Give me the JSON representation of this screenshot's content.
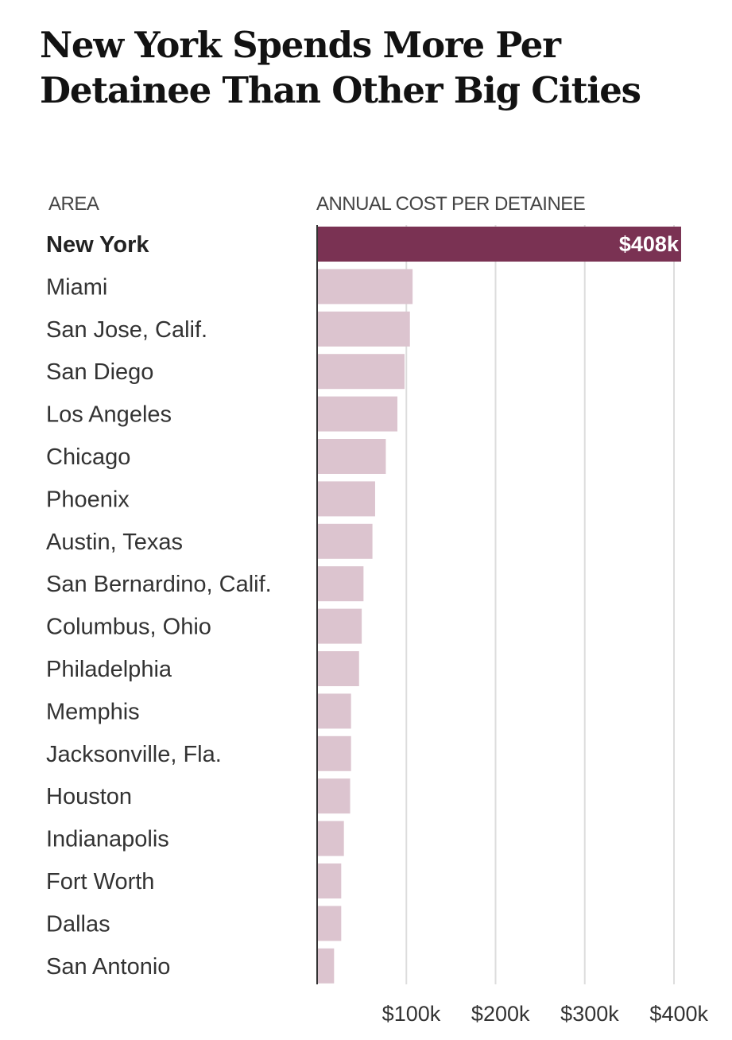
{
  "title": "New York Spends More Per Detainee Than Other Big Cities",
  "columns": {
    "area": "AREA",
    "cost": "ANNUAL COST PER DETAINEE"
  },
  "colors": {
    "highlight_bar": "#7a3253",
    "bar": "#dcc4cf",
    "gridline": "#dddddd",
    "axis": "#333333"
  },
  "chart_data": {
    "type": "bar",
    "orientation": "horizontal",
    "categories": [
      "New York",
      "Miami",
      "San Jose, Calif.",
      "San Diego",
      "Los Angeles",
      "Chicago",
      "Phoenix",
      "Austin, Texas",
      "San Bernardino, Calif.",
      "Columbus, Ohio",
      "Philadelphia",
      "Memphis",
      "Jacksonville, Fla.",
      "Houston",
      "Indianapolis",
      "Fort Worth",
      "Dallas",
      "San Antonio"
    ],
    "values": [
      408,
      107,
      104,
      98,
      90,
      77,
      65,
      62,
      52,
      50,
      47,
      38,
      38,
      37,
      30,
      27,
      27,
      19
    ],
    "unit": "thousand dollars",
    "highlight": "New York",
    "data_labels": [
      {
        "category": "New York",
        "text": "$408k"
      }
    ],
    "ticks": [
      {
        "value": 100,
        "label": "$100k"
      },
      {
        "value": 200,
        "label": "$200k"
      },
      {
        "value": 300,
        "label": "$300k"
      },
      {
        "value": 400,
        "label": "$400k"
      }
    ],
    "xlim": [
      0,
      408
    ],
    "grid": true,
    "xlabel": "ANNUAL COST PER DETAINEE",
    "ylabel": "AREA"
  }
}
